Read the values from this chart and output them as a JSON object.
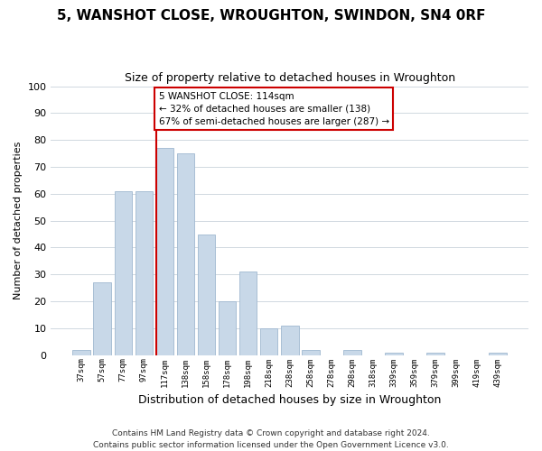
{
  "title": "5, WANSHOT CLOSE, WROUGHTON, SWINDON, SN4 0RF",
  "subtitle": "Size of property relative to detached houses in Wroughton",
  "xlabel": "Distribution of detached houses by size in Wroughton",
  "ylabel": "Number of detached properties",
  "bar_labels": [
    "37sqm",
    "57sqm",
    "77sqm",
    "97sqm",
    "117sqm",
    "138sqm",
    "158sqm",
    "178sqm",
    "198sqm",
    "218sqm",
    "238sqm",
    "258sqm",
    "278sqm",
    "298sqm",
    "318sqm",
    "339sqm",
    "359sqm",
    "379sqm",
    "399sqm",
    "419sqm",
    "439sqm"
  ],
  "bar_heights": [
    2,
    27,
    61,
    61,
    77,
    75,
    45,
    20,
    31,
    10,
    11,
    2,
    0,
    2,
    0,
    1,
    0,
    1,
    0,
    0,
    1
  ],
  "bar_color": "#c8d8e8",
  "bar_edge_color": "#a0b8d0",
  "reference_line_color": "#cc0000",
  "reference_bar_index": 4,
  "ylim": [
    0,
    100
  ],
  "annotation_title": "5 WANSHOT CLOSE: 114sqm",
  "annotation_line1": "← 32% of detached houses are smaller (138)",
  "annotation_line2": "67% of semi-detached houses are larger (287) →",
  "annotation_box_color": "#ffffff",
  "annotation_box_edge": "#cc0000",
  "footnote1": "Contains HM Land Registry data © Crown copyright and database right 2024.",
  "footnote2": "Contains public sector information licensed under the Open Government Licence v3.0.",
  "background_color": "#ffffff",
  "grid_color": "#d0d8e0"
}
